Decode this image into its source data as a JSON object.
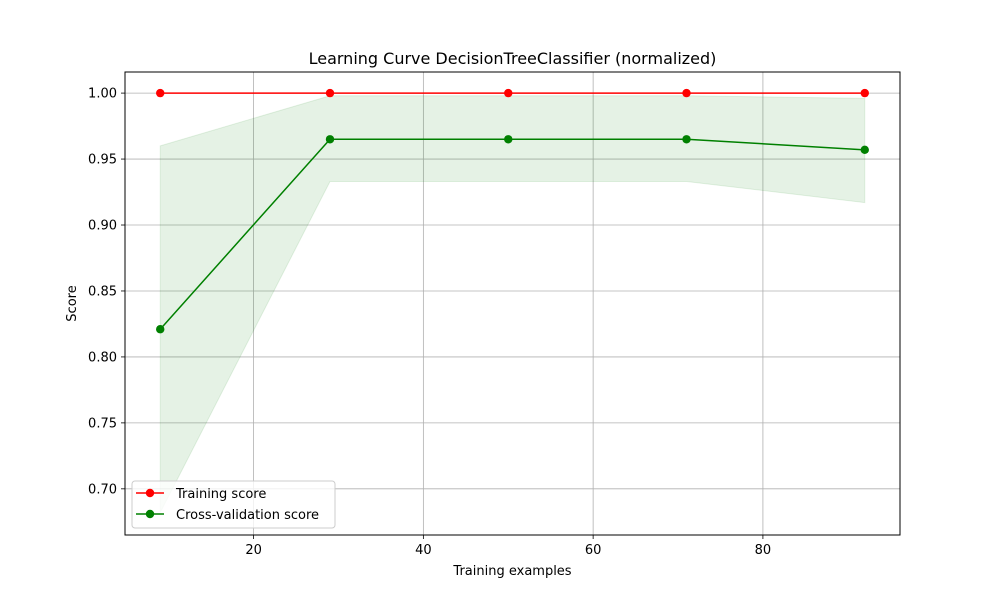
{
  "chart_data": {
    "type": "line",
    "title": "Learning Curve DecisionTreeClassifier (normalized)",
    "xlabel": "Training examples",
    "ylabel": "Score",
    "xlim": [
      4.85,
      96.15
    ],
    "ylim": [
      0.665,
      1.016
    ],
    "xticks": [
      20,
      40,
      60,
      80
    ],
    "yticks": [
      0.7,
      0.75,
      0.8,
      0.85,
      0.9,
      0.95,
      1.0
    ],
    "grid": true,
    "legend_position": "lower-left",
    "x": [
      9,
      29,
      50,
      71,
      92
    ],
    "series": [
      {
        "name": "Training score",
        "color": "#ff0000",
        "values": [
          1.0,
          1.0,
          1.0,
          1.0,
          1.0
        ],
        "band_lower": [
          1.0,
          1.0,
          1.0,
          1.0,
          1.0
        ],
        "band_upper": [
          1.0,
          1.0,
          1.0,
          1.0,
          1.0
        ]
      },
      {
        "name": "Cross-validation score",
        "color": "#008000",
        "values": [
          0.821,
          0.965,
          0.965,
          0.965,
          0.957
        ],
        "band_lower": [
          0.682,
          0.933,
          0.933,
          0.933,
          0.917
        ],
        "band_upper": [
          0.96,
          0.998,
          0.998,
          0.998,
          0.996
        ]
      }
    ]
  }
}
